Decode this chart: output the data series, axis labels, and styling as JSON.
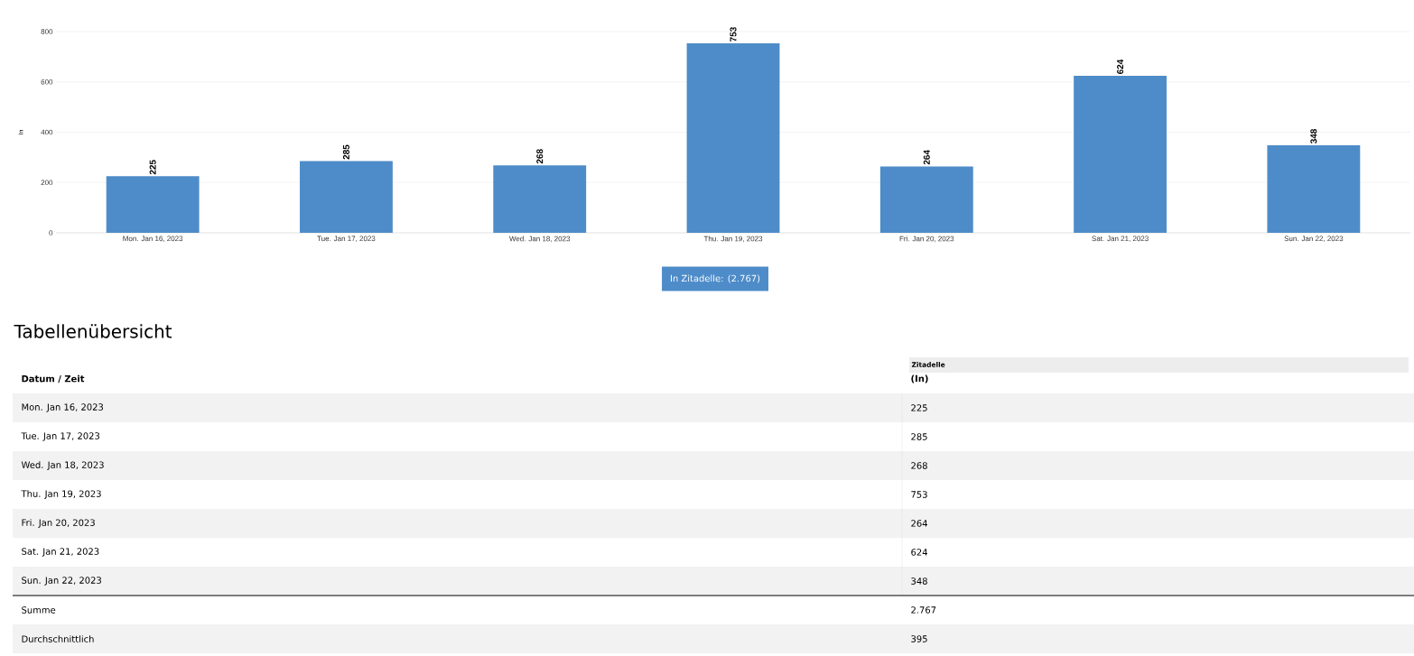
{
  "chart_data": {
    "type": "bar",
    "categories": [
      "Mon. Jan 16, 2023",
      "Tue. Jan 17, 2023",
      "Wed. Jan 18, 2023",
      "Thu. Jan 19, 2023",
      "Fri. Jan 20, 2023",
      "Sat. Jan 21, 2023",
      "Sun. Jan 22, 2023"
    ],
    "series": [
      {
        "name": "In Zitadelle: (2.767)",
        "color": "#4e8cc9",
        "values": [
          225,
          285,
          268,
          753,
          264,
          624,
          348
        ],
        "value_labels": [
          "225",
          "285",
          "268",
          "753",
          "264",
          "624",
          "348"
        ]
      }
    ],
    "ylabel": "In",
    "ylim": [
      0,
      800
    ],
    "yticks": [
      0,
      200,
      400,
      600,
      800
    ],
    "grid": "y",
    "legend": "bottom",
    "annotations": [
      "Tabellenübersicht",
      "Datum / Zeit",
      "Zitadelle",
      "(In)",
      "Summe",
      "2.767",
      "Durchschnittlich",
      "395"
    ]
  }
}
